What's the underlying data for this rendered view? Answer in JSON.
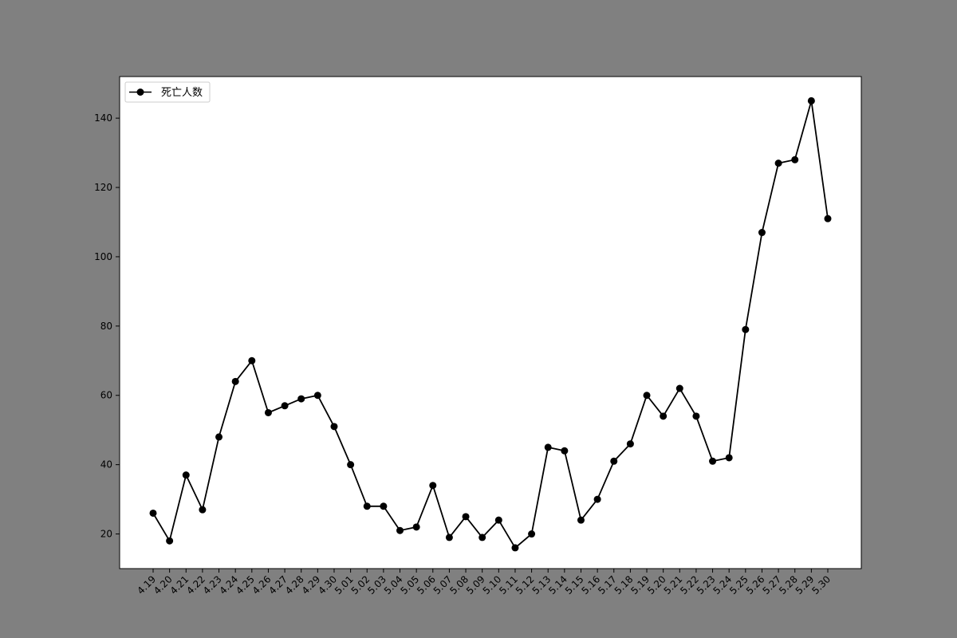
{
  "chart_data": {
    "type": "line",
    "title": "",
    "xlabel": "",
    "ylabel": "",
    "x": [
      "4.19",
      "4.20",
      "4.21",
      "4.22",
      "4.23",
      "4.24",
      "4.25",
      "4.26",
      "4.27",
      "4.28",
      "4.29",
      "4.30",
      "5.01",
      "5.02",
      "5.03",
      "5.04",
      "5.05",
      "5.06",
      "5.07",
      "5.08",
      "5.09",
      "5.10",
      "5.11",
      "5.12",
      "5.13",
      "5.14",
      "5.15",
      "5.16",
      "5.17",
      "5.18",
      "5.19",
      "5.20",
      "5.21",
      "5.22",
      "5.23",
      "5.24",
      "5.25",
      "5.26",
      "5.27",
      "5.28",
      "5.29",
      "5.30"
    ],
    "series": [
      {
        "name": "死亡人数",
        "color": "#000000",
        "marker": "circle",
        "values": [
          26,
          18,
          37,
          27,
          48,
          64,
          70,
          55,
          57,
          59,
          60,
          51,
          40,
          28,
          28,
          21,
          22,
          34,
          19,
          25,
          19,
          24,
          16,
          20,
          45,
          44,
          24,
          30,
          41,
          46,
          60,
          54,
          62,
          54,
          41,
          42,
          79,
          107,
          127,
          128,
          145,
          111
        ]
      }
    ],
    "yticks": [
      20,
      40,
      60,
      80,
      100,
      120,
      140
    ],
    "ylim": [
      10,
      152
    ],
    "grid": false,
    "legend_position": "top-left",
    "colors": {
      "figure_bg": "#808080",
      "axes_bg": "#ffffff",
      "line": "#000000"
    }
  }
}
